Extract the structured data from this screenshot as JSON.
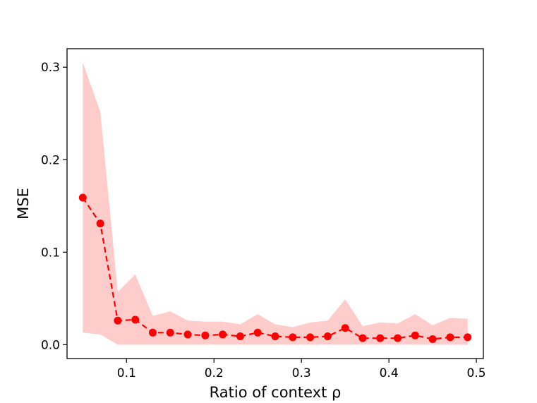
{
  "chart_data": {
    "type": "line",
    "title": "",
    "xlabel": "Ratio of context ρ",
    "ylabel": "MSE",
    "xlim": [
      0.032,
      0.508
    ],
    "ylim": [
      -0.015,
      0.32
    ],
    "xticks": [
      0.1,
      0.2,
      0.3,
      0.4,
      0.5
    ],
    "xtick_labels": [
      "0.1",
      "0.2",
      "0.3",
      "0.4",
      "0.5"
    ],
    "yticks": [
      0.0,
      0.1,
      0.2,
      0.3
    ],
    "ytick_labels": [
      "0.0",
      "0.1",
      "0.2",
      "0.3"
    ],
    "grid": false,
    "legend": "none",
    "series": [
      {
        "line_color": "#ff0000",
        "line_style": "dashed",
        "marker": "circle",
        "band_color": "#ffcccc",
        "x": [
          0.05,
          0.07,
          0.09,
          0.11,
          0.13,
          0.15,
          0.17,
          0.19,
          0.21,
          0.23,
          0.25,
          0.27,
          0.29,
          0.31,
          0.33,
          0.35,
          0.37,
          0.39,
          0.41,
          0.43,
          0.45,
          0.47,
          0.49
        ],
        "y": [
          0.159,
          0.131,
          0.026,
          0.027,
          0.013,
          0.013,
          0.011,
          0.01,
          0.011,
          0.009,
          0.013,
          0.009,
          0.008,
          0.008,
          0.009,
          0.018,
          0.007,
          0.007,
          0.007,
          0.01,
          0.006,
          0.008,
          0.008
        ],
        "lower": [
          0.013,
          0.011,
          0.0,
          0.0,
          0.0,
          0.0,
          0.0,
          0.0,
          0.0,
          0.0,
          0.0,
          0.0,
          0.0,
          0.0,
          0.0,
          0.0,
          0.0,
          0.0,
          0.0,
          0.0,
          0.0,
          0.0,
          0.0
        ],
        "upper": [
          0.305,
          0.252,
          0.057,
          0.076,
          0.031,
          0.036,
          0.026,
          0.025,
          0.025,
          0.022,
          0.033,
          0.022,
          0.019,
          0.024,
          0.026,
          0.049,
          0.02,
          0.024,
          0.023,
          0.033,
          0.021,
          0.029,
          0.028
        ]
      }
    ]
  }
}
